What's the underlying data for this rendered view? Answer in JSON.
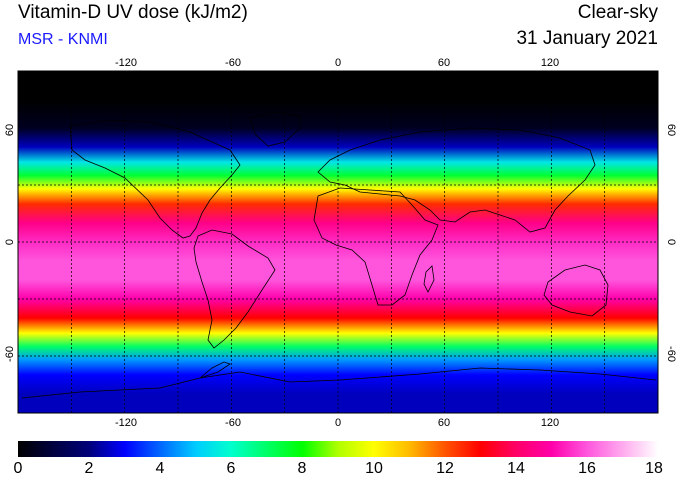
{
  "header": {
    "title": "Vitamin-D UV dose (kJ/m2)",
    "source": "MSR - KNMI",
    "condition": "Clear-sky",
    "date": "31 January 2021"
  },
  "map": {
    "projection": "equirectangular",
    "lon_range": [
      -180,
      180
    ],
    "lat_range": [
      -90,
      90
    ],
    "lon_ticks": [
      "-120",
      "-60",
      "0",
      "60",
      "120"
    ],
    "lat_ticks": [
      "60",
      "0",
      "-60"
    ],
    "lon_tick_values": [
      -120,
      -60,
      0,
      60,
      120
    ],
    "lat_tick_values": [
      60,
      0,
      -60
    ],
    "gridline_lon": [
      -150,
      -120,
      -90,
      -60,
      -30,
      0,
      30,
      60,
      90,
      120,
      150
    ],
    "gridline_lat": [
      30,
      0,
      -30,
      -60
    ]
  },
  "chart_data": {
    "type": "heatmap",
    "title": "Vitamin-D UV dose (kJ/m2)",
    "units": "kJ/m2",
    "colorbar_range": [
      0,
      18
    ],
    "colorbar_ticks": [
      "0",
      "2",
      "4",
      "6",
      "8",
      "10",
      "12",
      "14",
      "16",
      "18"
    ],
    "latitude_profile": [
      {
        "lat": 90,
        "value": 0
      },
      {
        "lat": 75,
        "value": 0
      },
      {
        "lat": 60,
        "value": 0.5
      },
      {
        "lat": 50,
        "value": 2.5
      },
      {
        "lat": 42,
        "value": 5.5
      },
      {
        "lat": 35,
        "value": 7.5
      },
      {
        "lat": 28,
        "value": 10
      },
      {
        "lat": 20,
        "value": 12.5
      },
      {
        "lat": 10,
        "value": 14.5
      },
      {
        "lat": 0,
        "value": 15.5
      },
      {
        "lat": -10,
        "value": 16
      },
      {
        "lat": -20,
        "value": 16
      },
      {
        "lat": -30,
        "value": 15
      },
      {
        "lat": -40,
        "value": 13
      },
      {
        "lat": -48,
        "value": 10
      },
      {
        "lat": -55,
        "value": 7
      },
      {
        "lat": -62,
        "value": 4.5
      },
      {
        "lat": -70,
        "value": 3
      },
      {
        "lat": -80,
        "value": 2.5
      },
      {
        "lat": -90,
        "value": 2.5
      }
    ],
    "colorscale": [
      {
        "value": 0,
        "color": "#000000"
      },
      {
        "value": 1,
        "color": "#000040"
      },
      {
        "value": 2,
        "color": "#00007a"
      },
      {
        "value": 3,
        "color": "#0000ff"
      },
      {
        "value": 4,
        "color": "#0066ff"
      },
      {
        "value": 5,
        "color": "#00ccff"
      },
      {
        "value": 6,
        "color": "#00ffcc"
      },
      {
        "value": 7,
        "color": "#00ff66"
      },
      {
        "value": 8,
        "color": "#00ff00"
      },
      {
        "value": 9,
        "color": "#b0ff00"
      },
      {
        "value": 10,
        "color": "#ffff00"
      },
      {
        "value": 11,
        "color": "#ffbb00"
      },
      {
        "value": 12,
        "color": "#ff5500"
      },
      {
        "value": 13,
        "color": "#ff0000"
      },
      {
        "value": 14,
        "color": "#ff0066"
      },
      {
        "value": 15,
        "color": "#ff00aa"
      },
      {
        "value": 16,
        "color": "#ff55dd"
      },
      {
        "value": 17,
        "color": "#ffaaee"
      },
      {
        "value": 18,
        "color": "#ffffff"
      }
    ]
  }
}
